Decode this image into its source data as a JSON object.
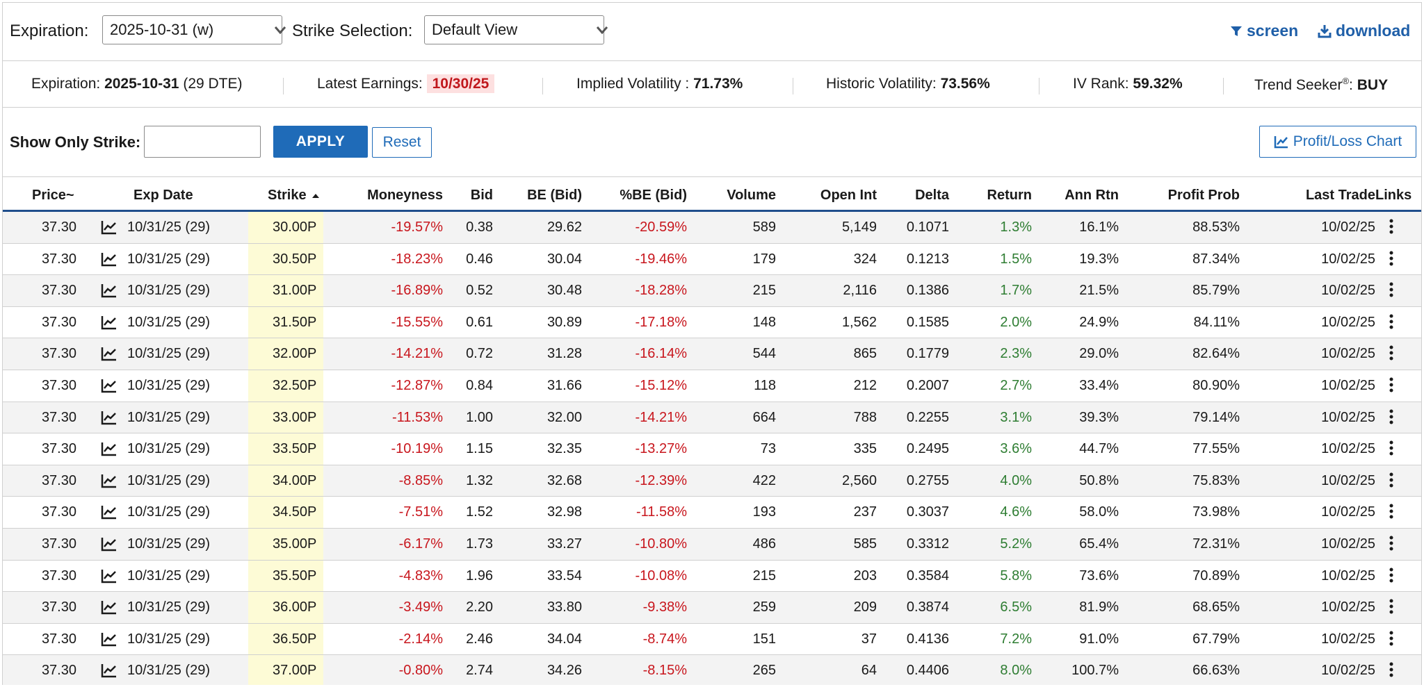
{
  "header": {
    "expiration_label": "Expiration:",
    "expiration_value": "2025-10-31 (w)",
    "strike_selection_label": "Strike Selection:",
    "strike_selection_value": "Default View",
    "screen_label": "screen",
    "download_label": "download"
  },
  "stats": {
    "expiration_label": "Expiration:",
    "expiration_date": "2025-10-31",
    "expiration_dte": "(29 DTE)",
    "earnings_label": "Latest Earnings:",
    "earnings_value": "10/30/25",
    "iv_label": "Implied Volatility :",
    "iv_value": "71.73%",
    "hv_label": "Historic Volatility:",
    "hv_value": "73.56%",
    "ivrank_label": "IV Rank:",
    "ivrank_value": "59.32%",
    "trend_label": "Trend Seeker",
    "trend_mark": "®",
    "trend_colon": ":",
    "trend_value": "BUY"
  },
  "filter": {
    "label": "Show Only Strike:",
    "input_value": "",
    "apply_label": "APPLY",
    "reset_label": "Reset",
    "pl_chart_label": "Profit/Loss Chart"
  },
  "table": {
    "columns": [
      "Price~",
      "Exp Date",
      "Strike",
      "Moneyness",
      "Bid",
      "BE (Bid)",
      "%BE (Bid)",
      "Volume",
      "Open Int",
      "Delta",
      "Return",
      "Ann Rtn",
      "Profit Prob",
      "Last Trade",
      "Links"
    ],
    "rows": [
      [
        "37.30",
        "10/31/25 (29)",
        "30.00P",
        "-19.57%",
        "0.38",
        "29.62",
        "-20.59%",
        "589",
        "5,149",
        "0.1071",
        "1.3%",
        "16.1%",
        "88.53%",
        "10/02/25"
      ],
      [
        "37.30",
        "10/31/25 (29)",
        "30.50P",
        "-18.23%",
        "0.46",
        "30.04",
        "-19.46%",
        "179",
        "324",
        "0.1213",
        "1.5%",
        "19.3%",
        "87.34%",
        "10/02/25"
      ],
      [
        "37.30",
        "10/31/25 (29)",
        "31.00P",
        "-16.89%",
        "0.52",
        "30.48",
        "-18.28%",
        "215",
        "2,116",
        "0.1386",
        "1.7%",
        "21.5%",
        "85.79%",
        "10/02/25"
      ],
      [
        "37.30",
        "10/31/25 (29)",
        "31.50P",
        "-15.55%",
        "0.61",
        "30.89",
        "-17.18%",
        "148",
        "1,562",
        "0.1585",
        "2.0%",
        "24.9%",
        "84.11%",
        "10/02/25"
      ],
      [
        "37.30",
        "10/31/25 (29)",
        "32.00P",
        "-14.21%",
        "0.72",
        "31.28",
        "-16.14%",
        "544",
        "865",
        "0.1779",
        "2.3%",
        "29.0%",
        "82.64%",
        "10/02/25"
      ],
      [
        "37.30",
        "10/31/25 (29)",
        "32.50P",
        "-12.87%",
        "0.84",
        "31.66",
        "-15.12%",
        "118",
        "212",
        "0.2007",
        "2.7%",
        "33.4%",
        "80.90%",
        "10/02/25"
      ],
      [
        "37.30",
        "10/31/25 (29)",
        "33.00P",
        "-11.53%",
        "1.00",
        "32.00",
        "-14.21%",
        "664",
        "788",
        "0.2255",
        "3.1%",
        "39.3%",
        "79.14%",
        "10/02/25"
      ],
      [
        "37.30",
        "10/31/25 (29)",
        "33.50P",
        "-10.19%",
        "1.15",
        "32.35",
        "-13.27%",
        "73",
        "335",
        "0.2495",
        "3.6%",
        "44.7%",
        "77.55%",
        "10/02/25"
      ],
      [
        "37.30",
        "10/31/25 (29)",
        "34.00P",
        "-8.85%",
        "1.32",
        "32.68",
        "-12.39%",
        "422",
        "2,560",
        "0.2755",
        "4.0%",
        "50.8%",
        "75.83%",
        "10/02/25"
      ],
      [
        "37.30",
        "10/31/25 (29)",
        "34.50P",
        "-7.51%",
        "1.52",
        "32.98",
        "-11.58%",
        "193",
        "237",
        "0.3037",
        "4.6%",
        "58.0%",
        "73.98%",
        "10/02/25"
      ],
      [
        "37.30",
        "10/31/25 (29)",
        "35.00P",
        "-6.17%",
        "1.73",
        "33.27",
        "-10.80%",
        "486",
        "585",
        "0.3312",
        "5.2%",
        "65.4%",
        "72.31%",
        "10/02/25"
      ],
      [
        "37.30",
        "10/31/25 (29)",
        "35.50P",
        "-4.83%",
        "1.96",
        "33.54",
        "-10.08%",
        "215",
        "203",
        "0.3584",
        "5.8%",
        "73.6%",
        "70.89%",
        "10/02/25"
      ],
      [
        "37.30",
        "10/31/25 (29)",
        "36.00P",
        "-3.49%",
        "2.20",
        "33.80",
        "-9.38%",
        "259",
        "209",
        "0.3874",
        "6.5%",
        "81.9%",
        "68.65%",
        "10/02/25"
      ],
      [
        "37.30",
        "10/31/25 (29)",
        "36.50P",
        "-2.14%",
        "2.46",
        "34.04",
        "-8.74%",
        "151",
        "37",
        "0.4136",
        "7.2%",
        "91.0%",
        "67.79%",
        "10/02/25"
      ],
      [
        "37.30",
        "10/31/25 (29)",
        "37.00P",
        "-0.80%",
        "2.74",
        "34.26",
        "-8.15%",
        "265",
        "64",
        "0.4406",
        "8.0%",
        "100.7%",
        "66.63%",
        "10/02/25"
      ]
    ]
  },
  "colors": {
    "accent": "#1f6bb8",
    "link": "#1f5fa8",
    "negative": "#c8161d",
    "positive": "#2e7d32",
    "strike_highlight": "#fdfbd6",
    "earnings_bg": "#fde0e0"
  },
  "icons": {
    "select_chevron": "chevron-down-icon",
    "screen": "filter-icon",
    "download": "download-icon",
    "pl_chart": "line-chart-icon",
    "row_chart": "line-chart-icon",
    "sort": "sort-up-icon",
    "links": "more-vertical-icon"
  }
}
